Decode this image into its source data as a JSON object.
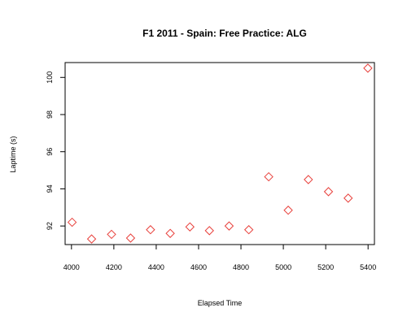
{
  "chart_data": {
    "type": "scatter",
    "title": "F1 2011 - Spain: Free Practice: ALG",
    "xlabel": "Elapsed Time",
    "ylabel": "Laptime (s)",
    "xlim": [
      3970,
      5430
    ],
    "ylim": [
      91.0,
      100.8
    ],
    "x_ticks": [
      4000,
      4200,
      4400,
      4600,
      4800,
      5000,
      5200,
      5400
    ],
    "y_ticks": [
      92,
      94,
      96,
      98,
      100
    ],
    "marker": "diamond-open",
    "color": "#e8413c",
    "grid": false,
    "x": [
      4003,
      4095,
      4189,
      4279,
      4373,
      4466,
      4559,
      4651,
      4744,
      4837,
      4931,
      5023,
      5118,
      5213,
      5306,
      5399
    ],
    "y": [
      92.2,
      91.3,
      91.55,
      91.35,
      91.8,
      91.6,
      91.95,
      91.75,
      92.0,
      91.8,
      94.65,
      92.85,
      94.5,
      93.85,
      93.5,
      100.5
    ]
  }
}
